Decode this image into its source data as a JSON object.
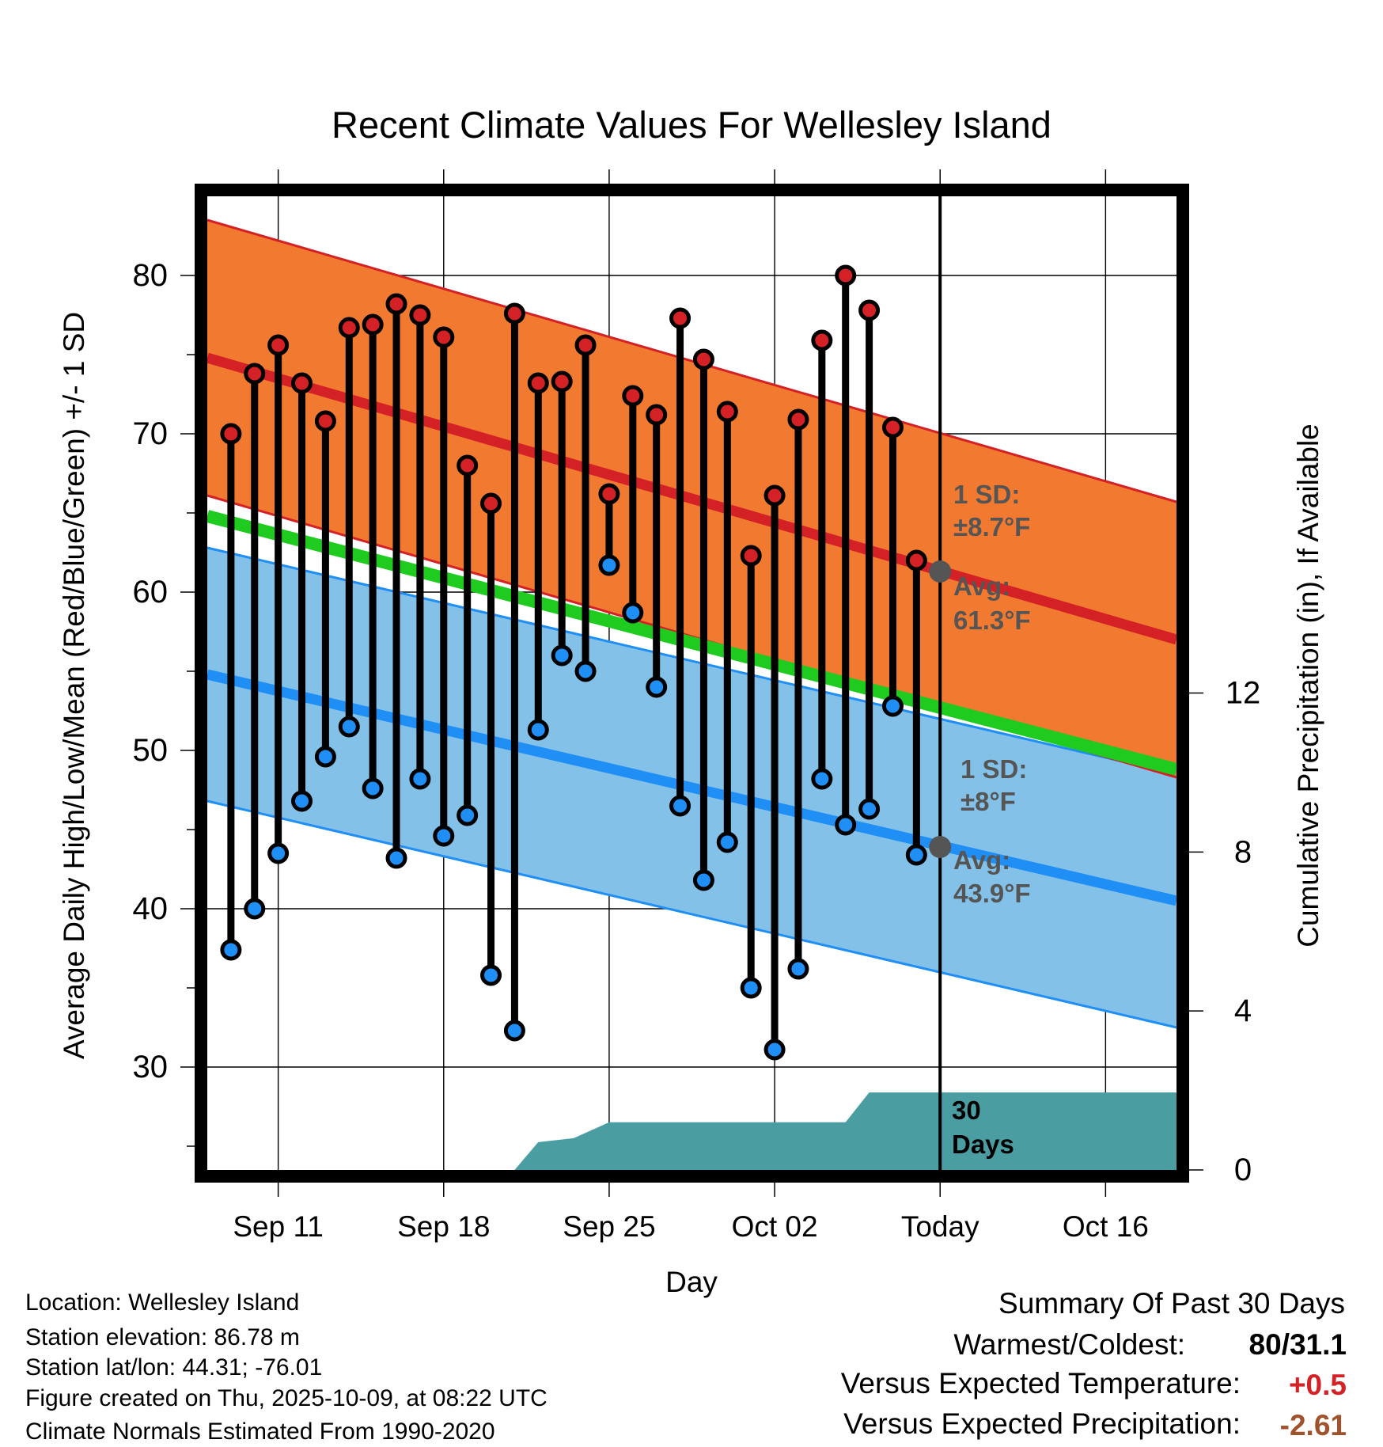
{
  "chart_data": {
    "type": "climate-range",
    "title": "Recent Climate Values For Wellesley Island",
    "xlabel": "Day",
    "ylabel": "Average Daily High/Low/Mean (Red/Blue/Green) +/- 1 SD",
    "y2label": "Cumulative Precipitation (in), If Available",
    "xlim": [
      0,
      41
    ],
    "ylim": [
      23.5,
      85
    ],
    "y2lim": [
      0,
      24.5
    ],
    "x_ticks": [
      {
        "day": 3,
        "label": "Sep 11"
      },
      {
        "day": 10,
        "label": "Sep 18"
      },
      {
        "day": 17,
        "label": "Sep 25"
      },
      {
        "day": 24,
        "label": "Oct 02"
      },
      {
        "day": 31,
        "label": "Today"
      },
      {
        "day": 38,
        "label": "Oct 16"
      }
    ],
    "y_ticks": [
      30,
      40,
      50,
      60,
      70,
      80
    ],
    "y_minor_ticks": [
      25,
      35,
      45,
      55,
      65,
      75
    ],
    "y2_ticks": [
      0,
      4,
      8,
      12
    ],
    "today_day": 31,
    "normals_days": [
      0,
      41
    ],
    "normal_high_mean": [
      74.8,
      57.0
    ],
    "normal_high_sd": 8.7,
    "normal_low_mean": [
      54.8,
      40.5
    ],
    "normal_low_sd": 8,
    "normal_mean": [
      64.8,
      48.8
    ],
    "observed": {
      "days": [
        1,
        2,
        3,
        4,
        5,
        6,
        7,
        8,
        9,
        10,
        11,
        12,
        13,
        14,
        15,
        16,
        17,
        18,
        19,
        20,
        21,
        22,
        23,
        24,
        25,
        26,
        27,
        28,
        29,
        30
      ],
      "highs": [
        70,
        73.8,
        75.6,
        73.2,
        70.8,
        76.7,
        76.9,
        78.2,
        77.5,
        76.1,
        68,
        65.6,
        77.6,
        73.2,
        73.3,
        75.6,
        66.2,
        72.4,
        71.2,
        77.3,
        74.7,
        71.4,
        62.3,
        66.1,
        70.9,
        75.9,
        80,
        77.8,
        70.4,
        62
      ],
      "lows": [
        37.4,
        40,
        43.5,
        46.8,
        49.6,
        51.5,
        47.6,
        43.2,
        48.2,
        44.6,
        45.9,
        35.8,
        32.3,
        51.3,
        56,
        55,
        61.7,
        58.7,
        54,
        46.5,
        41.8,
        44.2,
        35,
        31.1,
        36.2,
        48.2,
        45.3,
        46.3,
        52.8,
        43.4
      ]
    },
    "precip_cumulative": [
      {
        "day": 13,
        "in": 0
      },
      {
        "day": 14,
        "in": 0.7
      },
      {
        "day": 15.5,
        "in": 0.8
      },
      {
        "day": 17,
        "in": 1.2
      },
      {
        "day": 27,
        "in": 1.2
      },
      {
        "day": 28,
        "in": 1.95
      },
      {
        "day": 41,
        "in": 1.95
      }
    ],
    "annotations": {
      "high_sd_label": "1 SD:",
      "high_sd_value": "±8.7°F",
      "high_avg_label": "Avg:",
      "high_avg_value": "61.3°F",
      "high_avg_marker": 61.3,
      "low_sd_label": "1 SD:",
      "low_sd_value": "±8°F",
      "low_avg_label": "Avg:",
      "low_avg_value": "43.9°F",
      "low_avg_marker": 43.9,
      "days_label_1": "30",
      "days_label_2": "Days"
    },
    "colors": {
      "high_band": "#f27a30",
      "high_line": "#d42126",
      "low_band": "#84c1e8",
      "low_line": "#1f8ef5",
      "mean_line": "#1ecb1e",
      "precip": "#4a9ea2",
      "avg_marker": "#555555",
      "annotation": "#555555"
    }
  },
  "footer": {
    "location": "Location: Wellesley Island",
    "elevation": "Station elevation: 86.78 m",
    "latlon": "Station lat/lon: 44.31; -76.01",
    "created": "Figure created on Thu, 2025-10-09, at 08:22 UTC",
    "normals": "Climate Normals Estimated From 1990-2020"
  },
  "summary": {
    "title": "Summary Of Past 30 Days",
    "warm_cold_label": "Warmest/Coldest:",
    "warm_cold_value": "80/31.1",
    "temp_label": "Versus Expected Temperature:",
    "temp_value": "+0.5",
    "temp_color": "#d42126",
    "precip_label": "Versus Expected Precipitation:",
    "precip_value": "-2.61",
    "precip_color": "#a0522d"
  }
}
